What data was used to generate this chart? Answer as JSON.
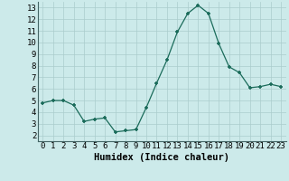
{
  "x": [
    0,
    1,
    2,
    3,
    4,
    5,
    6,
    7,
    8,
    9,
    10,
    11,
    12,
    13,
    14,
    15,
    16,
    17,
    18,
    19,
    20,
    21,
    22,
    23
  ],
  "y": [
    4.8,
    5.0,
    5.0,
    4.6,
    3.2,
    3.4,
    3.5,
    2.3,
    2.4,
    2.5,
    4.4,
    6.5,
    8.5,
    10.9,
    12.5,
    13.2,
    12.5,
    9.9,
    7.9,
    7.4,
    6.1,
    6.2,
    6.4,
    6.2
  ],
  "xlabel": "Humidex (Indice chaleur)",
  "xlim": [
    -0.5,
    23.5
  ],
  "ylim": [
    1.5,
    13.5
  ],
  "yticks": [
    2,
    3,
    4,
    5,
    6,
    7,
    8,
    9,
    10,
    11,
    12,
    13
  ],
  "xticks": [
    0,
    1,
    2,
    3,
    4,
    5,
    6,
    7,
    8,
    9,
    10,
    11,
    12,
    13,
    14,
    15,
    16,
    17,
    18,
    19,
    20,
    21,
    22,
    23
  ],
  "line_color": "#1a6b5a",
  "marker_color": "#1a6b5a",
  "bg_color": "#cceaea",
  "grid_color": "#aacccc",
  "tick_label_fontsize": 6.5,
  "xlabel_fontsize": 7.5
}
